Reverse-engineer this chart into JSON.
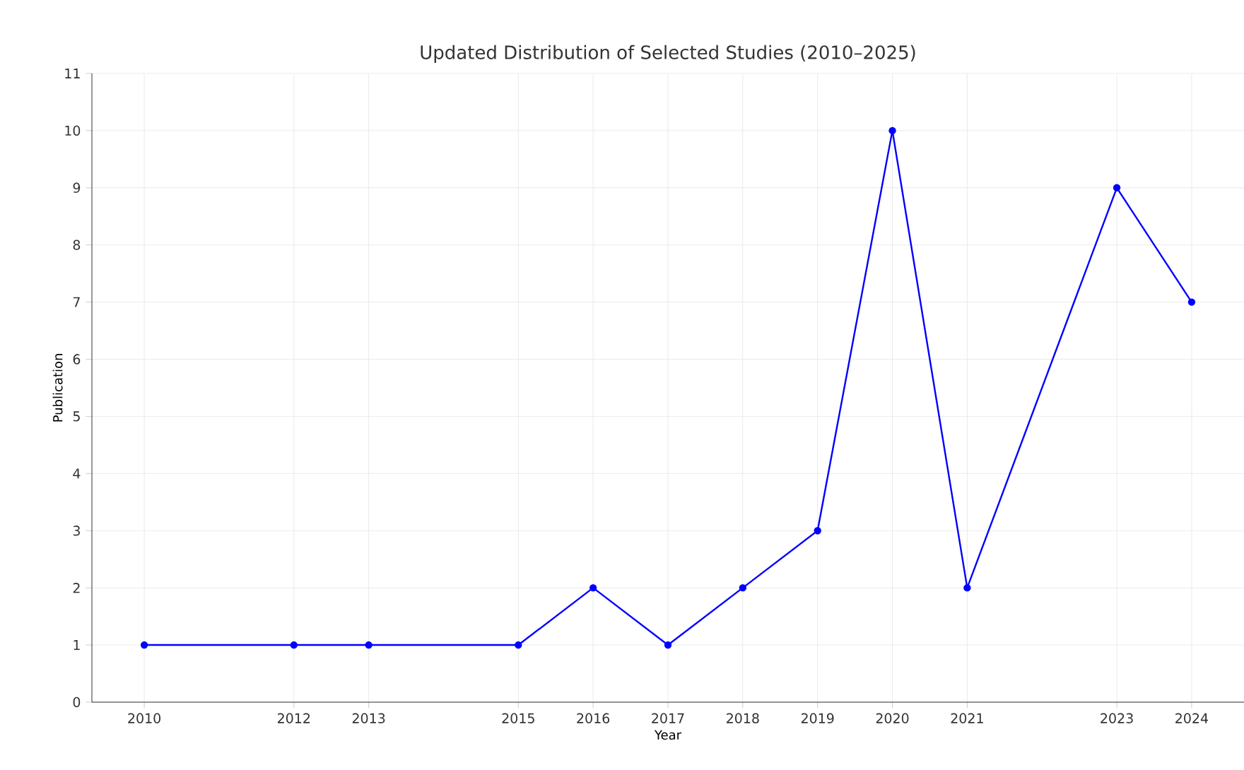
{
  "chart_data": {
    "type": "line",
    "title": "Updated Distribution of Selected Studies (2010–2025)",
    "xlabel": "Year",
    "ylabel": "Publication",
    "x": [
      2010,
      2012,
      2013,
      2015,
      2016,
      2017,
      2018,
      2019,
      2020,
      2021,
      2023,
      2024
    ],
    "series": [
      {
        "color": "#0000ff",
        "values": [
          1,
          1,
          1,
          1,
          2,
          1,
          2,
          3,
          10,
          2,
          9,
          7
        ]
      }
    ],
    "xlim": [
      2009.3,
      2024.7
    ],
    "xticks": [
      2010,
      2012,
      2013,
      2015,
      2016,
      2017,
      2018,
      2019,
      2020,
      2021,
      2023,
      2024
    ],
    "ylim": [
      0,
      11
    ],
    "yticks": [
      0,
      1,
      2,
      3,
      4,
      5,
      6,
      7,
      8,
      9,
      10,
      11
    ],
    "grid": true,
    "marker": "circle",
    "line_style": "solid"
  }
}
